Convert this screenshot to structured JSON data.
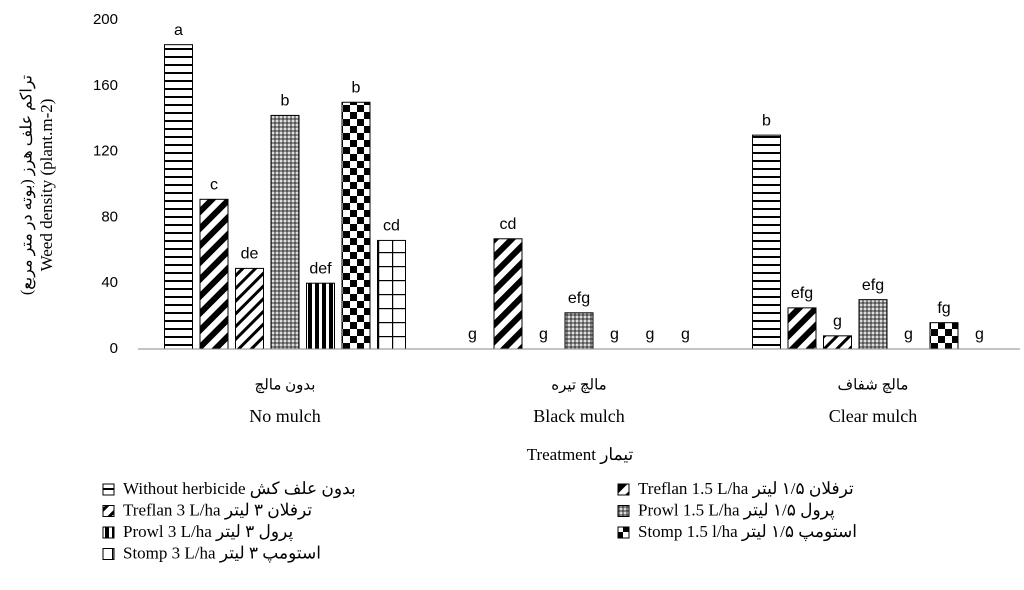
{
  "chart_data": {
    "type": "bar",
    "ylabel": [
      "تراکم علف هرز (بوته در متر مربع)",
      "Weed density (plant.m-2)"
    ],
    "xlabel": "Treatment تیمار",
    "categories": [
      "بدون مالچ",
      "مالچ تیره",
      "مالچ شفاف"
    ],
    "categories_en": [
      "No mulch",
      "Black mulch",
      "Clear mulch"
    ],
    "ylim": [
      0,
      200
    ],
    "yticks": [
      0,
      40,
      80,
      120,
      160,
      200
    ],
    "grid": false,
    "series": [
      {
        "name": "Without herbicide بدون علف کش",
        "color": "#000000",
        "pattern": "horizontal",
        "values": [
          185,
          0,
          130
        ],
        "value_labels": [
          "a",
          "g",
          "b"
        ]
      },
      {
        "name": "Treflan 1.5 L/ha ترفلان ۱/۵ لیتر",
        "color": "#000000",
        "pattern": "diagonal-wide",
        "values": [
          91,
          67,
          25
        ],
        "value_labels": [
          "c",
          "cd",
          "efg"
        ]
      },
      {
        "name": "Treflan 3 L/ha ترفلان ۳ لیتر",
        "color": "#000000",
        "pattern": "diagonal",
        "values": [
          49,
          0,
          8
        ],
        "value_labels": [
          "de",
          "g",
          "g"
        ]
      },
      {
        "name": "Prowl 1.5 L/ha پرول ۱/۵ لیتر",
        "color": "#000000",
        "pattern": "dotted",
        "values": [
          142,
          22,
          30
        ],
        "value_labels": [
          "b",
          "efg",
          "efg"
        ]
      },
      {
        "name": "Prowl 3 L/ha پرول ۳ لیتر",
        "color": "#000000",
        "pattern": "vertical",
        "values": [
          40,
          0,
          0
        ],
        "value_labels": [
          "def",
          "g",
          "g"
        ]
      },
      {
        "name": "Stomp 1.5 l/ha استومپ ۱/۵ لیتر",
        "color": "#000000",
        "pattern": "checker",
        "values": [
          150,
          0,
          16
        ],
        "value_labels": [
          "b",
          "g",
          "fg"
        ]
      },
      {
        "name": "Stomp 3 L/ha استومپ ۳ لیتر",
        "color": "#000000",
        "pattern": "grid",
        "values": [
          66,
          0,
          0
        ],
        "value_labels": [
          "cd",
          "g",
          "g"
        ]
      }
    ]
  }
}
